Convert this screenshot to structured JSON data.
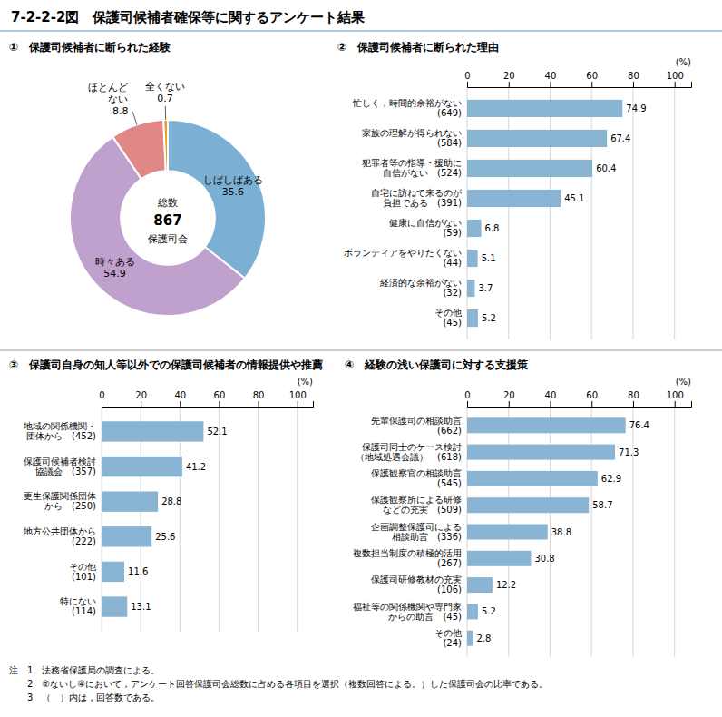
{
  "title": "7-2-2-2図　保護司候補者確保等に関するアンケート結果",
  "annotations": [
    "注　1　法務省保護局の調査による。",
    "　　2　②ないし④において，アンケート回答保護司会総数に占める各項目を選択（複数回答による。）した保護司会の比率である。",
    "　　3　（　）内は，回答数である。"
  ],
  "chart_data": [
    {
      "type": "pie",
      "title": "①　保護司候補者に断られた経験",
      "categories": [
        "しばしばある",
        "時々ある",
        "ほとんど\nない",
        "全くない"
      ],
      "values": [
        35.6,
        54.9,
        8.8,
        0.7
      ],
      "colors": [
        "#7bafd4",
        "#c0a0cc",
        "#e08888",
        "#e8a030"
      ],
      "data_labels": true,
      "annotations": [
        "総数",
        "867",
        "保護司会"
      ]
    },
    {
      "type": "bar",
      "orientation": "horizontal",
      "title": "②　保護司候補者に断られた理由",
      "categories": [
        "忙しく，時間的余裕がない\n(649)",
        "家族の理解が得られない\n(584)",
        "犯罪者等の指導・援助に\n自信がない　(524)",
        "自宅に訪ねて来るのが\n負担である　(391)",
        "健康に自信がない\n(59)",
        "ボランティアをやりたくない\n(44)",
        "経済的な余裕がない\n(32)",
        "その他\n(45)"
      ],
      "values": [
        74.9,
        67.4,
        60.4,
        45.1,
        6.8,
        5.1,
        3.7,
        5.2
      ],
      "color": "#8ab4d4",
      "xlabel": "(%)",
      "xlim": [
        0,
        108
      ],
      "xticks": [
        0,
        20,
        40,
        60,
        80,
        100
      ],
      "grid": true,
      "data_labels": true
    },
    {
      "type": "bar",
      "orientation": "horizontal",
      "title": "③　保護司自身の知人等以外での保護司候補者の情報提供や推薦",
      "categories": [
        "地域の関係機関・\n団体から　(452)",
        "保護司候補者検討\n協議会　(357)",
        "更生保護関係団体\nから　(250)",
        "地方公共団体から\n(222)",
        "その他\n(101)",
        "特にない\n(114)"
      ],
      "values": [
        52.1,
        41.2,
        28.8,
        25.6,
        11.6,
        13.1
      ],
      "color": "#8ab4d4",
      "xlabel": "(%)",
      "xlim": [
        0,
        108
      ],
      "xticks": [
        0,
        20,
        40,
        60,
        80,
        100
      ],
      "grid": true,
      "data_labels": true
    },
    {
      "type": "bar",
      "orientation": "horizontal",
      "title": "④　経験の浅い保護司に対する支援策",
      "categories": [
        "先輩保護司の相談助言\n(662)",
        "保護司同士のケース検討\n（地域処遇会議）　(618)",
        "保護観察官の相談助言\n(545)",
        "保護観察所による研修\nなどの充実　(509)",
        "企画調整保護司による\n相談助言　(336)",
        "複数担当制度の積極的活用\n(267)",
        "保護司研修教材の充実\n(106)",
        "福祉等の関係機関や専門家\nからの助言　(45)",
        "その他\n(24)"
      ],
      "values": [
        76.4,
        71.3,
        62.9,
        58.7,
        38.8,
        30.8,
        12.2,
        5.2,
        2.8
      ],
      "color": "#8ab4d4",
      "xlabel": "(%)",
      "xlim": [
        0,
        108
      ],
      "xticks": [
        0,
        20,
        40,
        60,
        80,
        100
      ],
      "grid": true,
      "data_labels": true
    }
  ]
}
